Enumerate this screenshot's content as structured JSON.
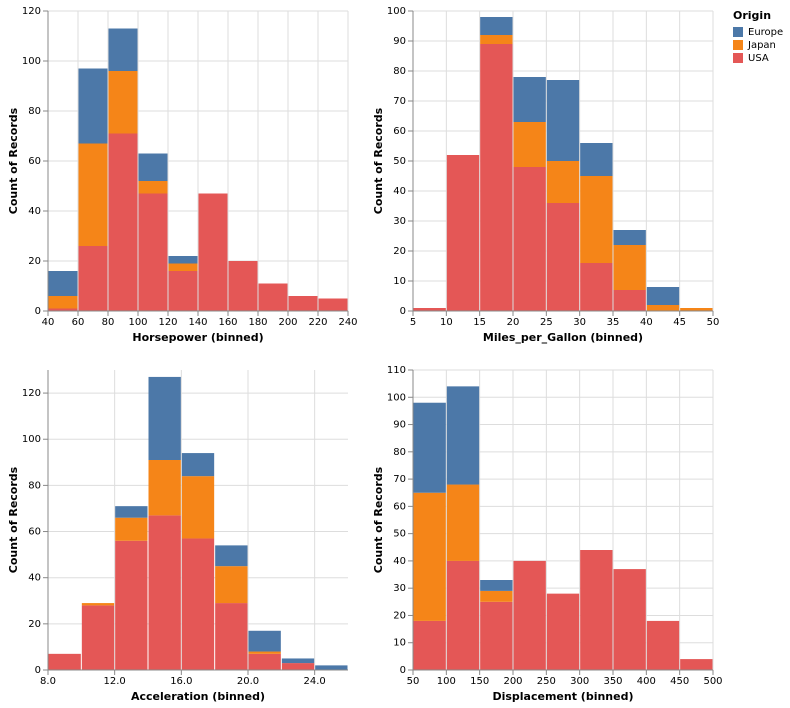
{
  "legend": {
    "title": "Origin"
  },
  "chart_data": [
    {
      "type": "histogram",
      "x_label": "Horsepower (binned)",
      "y_label": "Count of Records",
      "grid": true,
      "bins": [
        40,
        60,
        80,
        100,
        120,
        140,
        160,
        180,
        200,
        220,
        240
      ],
      "xlim": [
        40,
        240
      ],
      "xticks": [
        40,
        60,
        80,
        100,
        120,
        140,
        160,
        180,
        200,
        220,
        240
      ],
      "ylim": [
        0,
        120
      ],
      "yticks": [
        0,
        20,
        40,
        60,
        80,
        100,
        120
      ],
      "series": [
        {
          "name": "Europe",
          "color": "#4c78a8",
          "values": [
            10,
            30,
            17,
            11,
            3,
            0,
            0,
            0,
            0,
            0
          ]
        },
        {
          "name": "Japan",
          "color": "#f58518",
          "values": [
            5,
            41,
            25,
            5,
            3,
            0,
            0,
            0,
            0,
            0
          ]
        },
        {
          "name": "USA",
          "color": "#e45756",
          "values": [
            1,
            26,
            71,
            47,
            16,
            47,
            20,
            11,
            6,
            5
          ]
        }
      ]
    },
    {
      "type": "histogram",
      "x_label": "Miles_per_Gallon (binned)",
      "y_label": "Count of Records",
      "grid": true,
      "bins": [
        5,
        10,
        15,
        20,
        25,
        30,
        35,
        40,
        45,
        50
      ],
      "xlim": [
        5,
        50
      ],
      "xticks": [
        5,
        10,
        15,
        20,
        25,
        30,
        35,
        40,
        45,
        50
      ],
      "ylim": [
        0,
        100
      ],
      "yticks": [
        0,
        10,
        20,
        30,
        40,
        50,
        60,
        70,
        80,
        90,
        100
      ],
      "series": [
        {
          "name": "Europe",
          "color": "#4c78a8",
          "values": [
            0,
            0,
            6,
            15,
            27,
            11,
            5,
            6,
            0
          ]
        },
        {
          "name": "Japan",
          "color": "#f58518",
          "values": [
            0,
            0,
            3,
            15,
            14,
            29,
            15,
            2,
            1
          ]
        },
        {
          "name": "USA",
          "color": "#e45756",
          "values": [
            1,
            52,
            89,
            48,
            36,
            16,
            7,
            0,
            0
          ]
        }
      ]
    },
    {
      "type": "histogram",
      "x_label": "Acceleration (binned)",
      "y_label": "Count of Records",
      "grid": true,
      "bins": [
        8,
        10,
        12,
        14,
        16,
        18,
        20,
        22,
        24,
        26
      ],
      "xlim": [
        8,
        26
      ],
      "xticks": [
        {
          "value": 8,
          "label": "8.0"
        },
        {
          "value": 12,
          "label": "12.0"
        },
        {
          "value": 16,
          "label": "16.0"
        },
        {
          "value": 20,
          "label": "20.0"
        },
        {
          "value": 24,
          "label": "24.0"
        }
      ],
      "ylim": [
        0,
        130
      ],
      "yticks": [
        0,
        20,
        40,
        60,
        80,
        100,
        120
      ],
      "series": [
        {
          "name": "Europe",
          "color": "#4c78a8",
          "values": [
            0,
            0,
            5,
            36,
            10,
            9,
            9,
            2,
            2
          ]
        },
        {
          "name": "Japan",
          "color": "#f58518",
          "values": [
            0,
            1,
            10,
            24,
            27,
            16,
            1,
            0,
            0
          ]
        },
        {
          "name": "USA",
          "color": "#e45756",
          "values": [
            7,
            28,
            56,
            67,
            57,
            29,
            7,
            3,
            0
          ]
        }
      ]
    },
    {
      "type": "histogram",
      "x_label": "Displacement (binned)",
      "y_label": "Count of Records",
      "grid": true,
      "bins": [
        50,
        100,
        150,
        200,
        250,
        300,
        350,
        400,
        450,
        500
      ],
      "xlim": [
        50,
        500
      ],
      "xticks": [
        50,
        100,
        150,
        200,
        250,
        300,
        350,
        400,
        450,
        500
      ],
      "ylim": [
        0,
        110
      ],
      "yticks": [
        0,
        10,
        20,
        30,
        40,
        50,
        60,
        70,
        80,
        90,
        100,
        110
      ],
      "series": [
        {
          "name": "Europe",
          "color": "#4c78a8",
          "values": [
            33,
            36,
            4,
            0,
            0,
            0,
            0,
            0,
            0
          ]
        },
        {
          "name": "Japan",
          "color": "#f58518",
          "values": [
            47,
            28,
            4,
            0,
            0,
            0,
            0,
            0,
            0
          ]
        },
        {
          "name": "USA",
          "color": "#e45756",
          "values": [
            18,
            40,
            25,
            40,
            28,
            44,
            37,
            18,
            4
          ]
        }
      ]
    }
  ]
}
